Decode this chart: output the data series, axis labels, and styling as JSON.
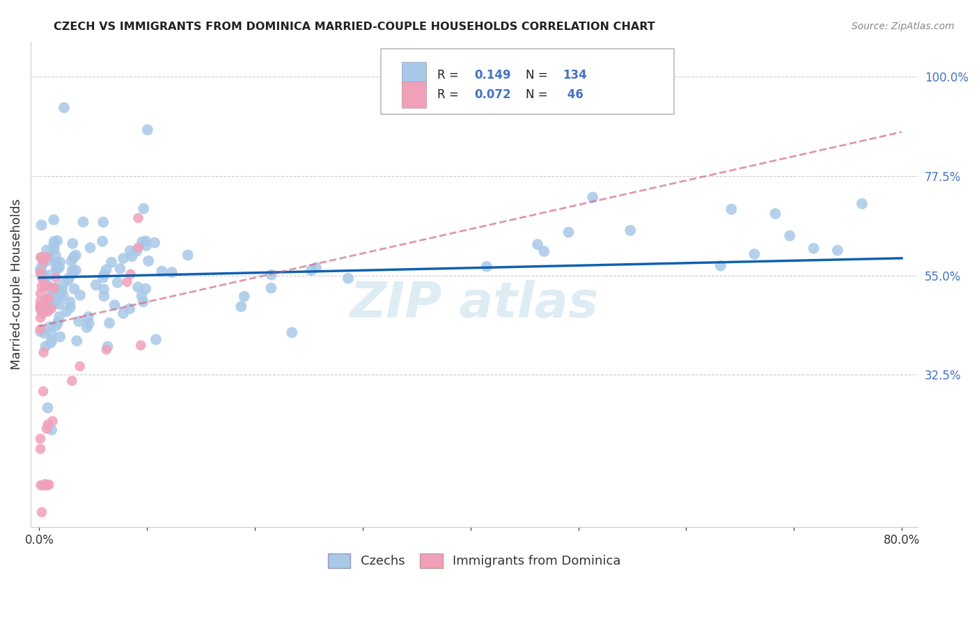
{
  "title": "CZECH VS IMMIGRANTS FROM DOMINICA MARRIED-COUPLE HOUSEHOLDS CORRELATION CHART",
  "source": "Source: ZipAtlas.com",
  "ylabel": "Married-couple Households",
  "x_min": 0.0,
  "x_max": 0.8,
  "y_min": 0.0,
  "y_max": 1.05,
  "x_ticks": [
    0.0,
    0.1,
    0.2,
    0.3,
    0.4,
    0.5,
    0.6,
    0.7,
    0.8
  ],
  "x_tick_labels": [
    "0.0%",
    "",
    "",
    "",
    "",
    "",
    "",
    "",
    "80.0%"
  ],
  "y_ticks": [
    0.325,
    0.55,
    0.775,
    1.0
  ],
  "y_tick_labels": [
    "32.5%",
    "55.0%",
    "77.5%",
    "100.0%"
  ],
  "czechs_color": "#a8c8e8",
  "czechs_line_color": "#1060b0",
  "dominica_color": "#f0a0b8",
  "dominica_line_color": "#d06080",
  "R_czechs": 0.149,
  "N_czechs": 134,
  "R_dominica": 0.072,
  "N_dominica": 46,
  "grid_color": "#cccccc",
  "background_color": "#ffffff",
  "watermark_color": "#d0e4f0",
  "title_color": "#222222",
  "source_color": "#888888",
  "tick_color_y": "#4472c4",
  "tick_color_x": "#333333",
  "ylabel_color": "#333333"
}
